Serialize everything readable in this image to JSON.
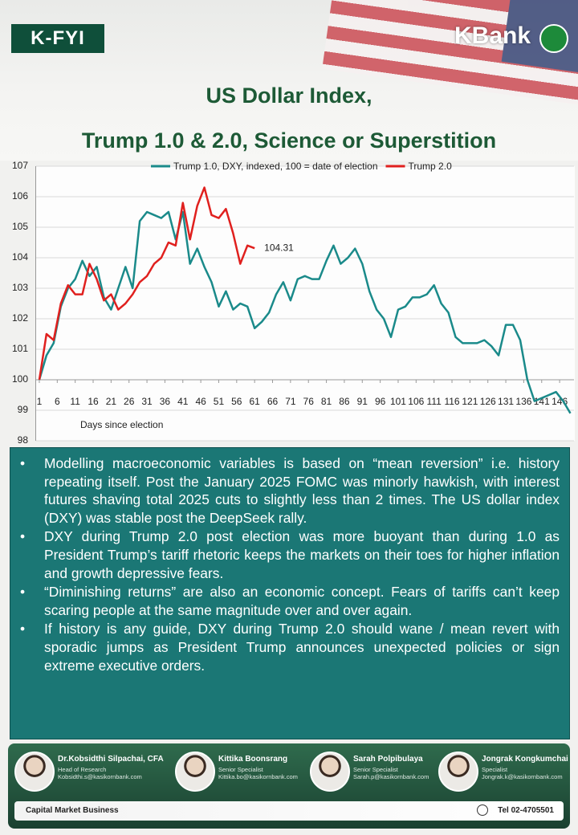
{
  "header": {
    "badge": "K-FYI",
    "brand": "KBank"
  },
  "title_lines": [
    "US Dollar Index,",
    "Trump 1.0 & 2.0, Science or Superstition"
  ],
  "chart_data": {
    "type": "line",
    "x": [
      1,
      3,
      5,
      7,
      9,
      11,
      13,
      15,
      17,
      19,
      21,
      23,
      25,
      27,
      29,
      31,
      33,
      35,
      37,
      39,
      41,
      43,
      45,
      47,
      49,
      51,
      53,
      55,
      57,
      59,
      61,
      63,
      65,
      67,
      69,
      71,
      73,
      75,
      77,
      79,
      81,
      83,
      85,
      87,
      89,
      91,
      93,
      95,
      97,
      99,
      101,
      103,
      105,
      107,
      109,
      111,
      113,
      115,
      117,
      119,
      121,
      123,
      125,
      127,
      129,
      131,
      133,
      135,
      137,
      139,
      141,
      143,
      145,
      147,
      149
    ],
    "series": [
      {
        "name": "Trump 1.0, DXY, indexed, 100 = date of election",
        "color": "#1a8a8a",
        "values": [
          100,
          100.8,
          101.2,
          102.4,
          103.0,
          103.3,
          103.9,
          103.4,
          103.7,
          102.7,
          102.3,
          103.0,
          103.7,
          103.0,
          105.2,
          105.5,
          105.4,
          105.3,
          105.5,
          104.6,
          105.5,
          103.8,
          104.3,
          103.7,
          103.2,
          102.4,
          102.9,
          102.3,
          102.5,
          102.4,
          101.69,
          101.9,
          102.2,
          102.8,
          103.2,
          102.6,
          103.3,
          103.4,
          103.3,
          103.3,
          103.9,
          104.4,
          103.8,
          104.0,
          104.3,
          103.8,
          102.9,
          102.3,
          102.0,
          101.4,
          102.3,
          102.4,
          102.7,
          102.7,
          102.8,
          103.1,
          102.5,
          102.2,
          101.4,
          101.2,
          101.2,
          101.2,
          101.3,
          101.1,
          100.8,
          101.8,
          101.8,
          101.3,
          100.0,
          99.3,
          99.4,
          99.5,
          99.6,
          99.3,
          98.9
        ]
      },
      {
        "name": "Trump 2.0",
        "color": "#e0201e",
        "values": [
          100,
          101.5,
          101.3,
          102.5,
          103.1,
          102.8,
          102.8,
          103.8,
          103.3,
          102.6,
          102.8,
          102.3,
          102.5,
          102.8,
          103.2,
          103.4,
          103.8,
          104.0,
          104.5,
          104.4,
          105.8,
          104.6,
          105.7,
          106.3,
          105.4,
          105.3,
          105.6,
          104.8,
          103.8,
          104.4,
          104.31,
          null,
          null,
          null,
          null,
          null,
          null,
          null,
          null,
          null,
          null,
          null,
          null,
          null,
          null,
          null,
          null,
          null,
          null,
          null,
          null,
          null,
          null,
          null,
          null,
          null,
          null,
          null,
          null,
          null,
          null,
          null,
          null,
          null,
          null,
          null,
          null,
          null,
          null,
          null,
          null,
          null,
          null,
          null,
          null
        ]
      }
    ],
    "xlabel": "Days since election",
    "xlim": [
      0,
      150
    ],
    "xticks": [
      1,
      6,
      11,
      16,
      21,
      26,
      31,
      36,
      41,
      46,
      51,
      56,
      61,
      66,
      71,
      76,
      81,
      86,
      91,
      96,
      101,
      106,
      111,
      116,
      121,
      126,
      131,
      136,
      141,
      146
    ],
    "ylim": [
      98,
      107
    ],
    "yticks": [
      98,
      99,
      100,
      101,
      102,
      103,
      104,
      105,
      106,
      107
    ],
    "grid": true,
    "legend": "top"
  },
  "bullets": [
    "Modelling macroeconomic variables is based on “mean reversion” i.e. history repeating itself. Post the January 2025 FOMC  was minorly hawkish, with interest futures shaving total 2025 cuts to slightly less than 2 times. The US dollar index (DXY) was stable post the DeepSeek rally.",
    "DXY during Trump 2.0 post election was more buoyant than during 1.0 as President Trump’s tariff rhetoric keeps the markets on their toes for higher inflation and growth depressive fears.",
    "“Diminishing returns” are also an economic concept. Fears of tariffs can’t keep scaring people at the same magnitude over and over again.",
    "If history is any guide, DXY during Trump 2.0 should wane / mean revert with sporadic jumps as President Trump announces unexpected policies or sign extreme executive orders."
  ],
  "team": [
    {
      "name": "Dr.Kobsidthi Silpachai, CFA",
      "role": "Head of Research",
      "email": "Kobsidthi.s@kasikornbank.com"
    },
    {
      "name": "Kittika Boonsrang",
      "role": "Senior Specialist",
      "email": "Kittika.bo@kasikornbank.com"
    },
    {
      "name": "Sarah Polpibulaya",
      "role": "Senior Specialist",
      "email": "Sarah.p@kasikornbank.com"
    },
    {
      "name": "Jongrak Kongkumchai",
      "role": "Specialist",
      "email": "Jongrak.k@kasikornbank.com"
    }
  ],
  "footer": {
    "unit": "Capital Market Business",
    "phone": "Tel 02-4705501"
  }
}
